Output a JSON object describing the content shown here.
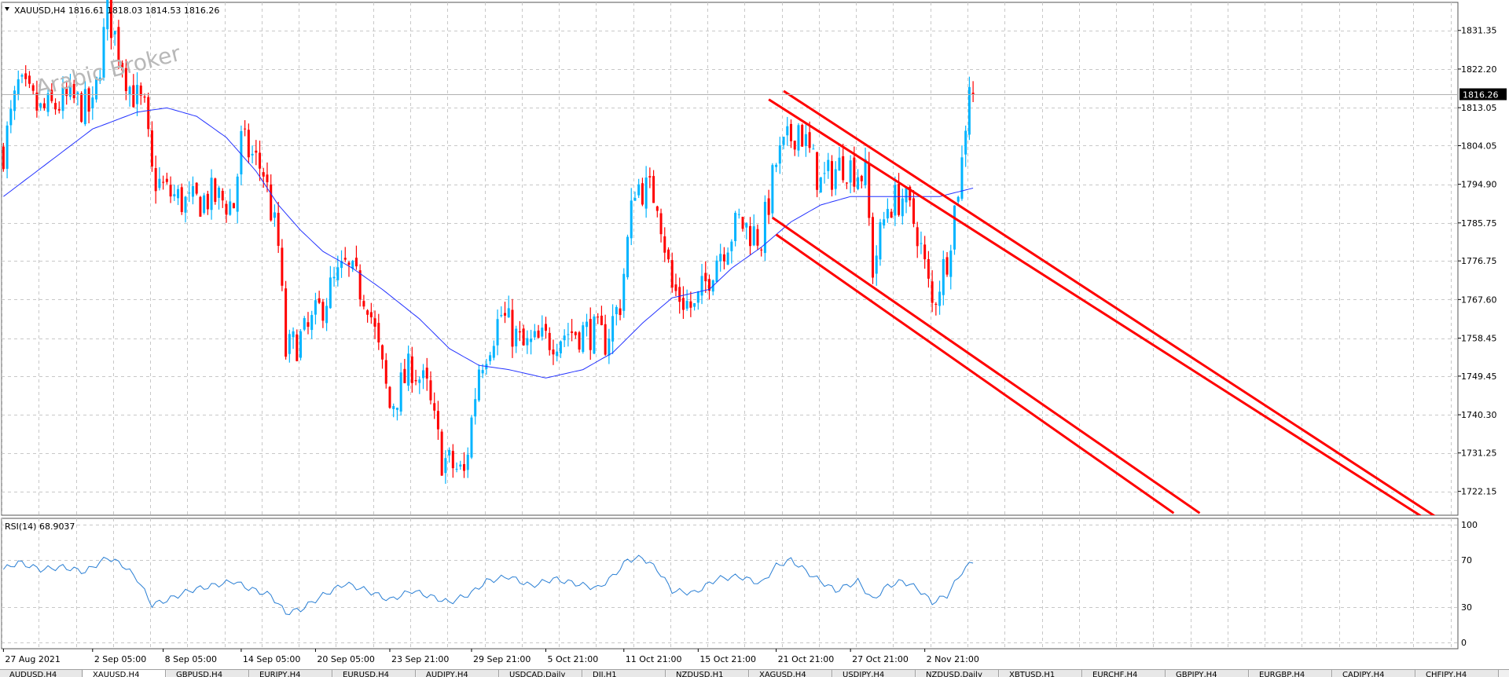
{
  "chart_data": {
    "type": "candlestick",
    "symbol_header": "XAUUSD,H4",
    "ohlc_header": "1816.61 1818.03 1814.53 1816.26",
    "current_price_label": "1816.26",
    "current_price": 1816.26,
    "watermark": "Arabic Broker",
    "price_axis": {
      "ylim": [
        1716.5,
        1838.0
      ],
      "ticks": [
        1722.15,
        1731.25,
        1740.3,
        1749.45,
        1758.45,
        1767.6,
        1776.75,
        1785.75,
        1794.9,
        1804.05,
        1813.05,
        1822.2,
        1831.35
      ],
      "tick_labels": [
        "1722.15",
        "1731.25",
        "1740.30",
        "1749.45",
        "1758.45",
        "1767.60",
        "1776.75",
        "1785.75",
        "1794.90",
        "1804.05",
        "1813.05",
        "1822.20",
        "1831.35"
      ]
    },
    "time_axis": {
      "labels": [
        "27 Aug 2021",
        "2 Sep 05:00",
        "8 Sep 05:00",
        "14 Sep 05:00",
        "20 Sep 05:00",
        "23 Sep 21:00",
        "29 Sep 21:00",
        "5 Oct 21:00",
        "11 Oct 21:00",
        "15 Oct 21:00",
        "21 Oct 21:00",
        "27 Oct 21:00",
        "2 Nov 21:00"
      ],
      "label_bar_index": [
        0,
        24,
        43,
        64,
        84,
        104,
        126,
        146,
        167,
        187,
        208,
        228,
        248
      ]
    },
    "candle_count": 262,
    "bars_total": 392,
    "close_path": [
      [
        0,
        1803
      ],
      [
        4,
        1818
      ],
      [
        10,
        1812
      ],
      [
        18,
        1815
      ],
      [
        24,
        1812
      ],
      [
        28,
        1836
      ],
      [
        34,
        1818
      ],
      [
        38,
        1812
      ],
      [
        40,
        1797
      ],
      [
        44,
        1793
      ],
      [
        50,
        1790
      ],
      [
        56,
        1792
      ],
      [
        62,
        1790
      ],
      [
        64,
        1805
      ],
      [
        70,
        1798
      ],
      [
        74,
        1780
      ],
      [
        76,
        1755
      ],
      [
        82,
        1760
      ],
      [
        88,
        1770
      ],
      [
        92,
        1775
      ],
      [
        98,
        1768
      ],
      [
        104,
        1742
      ],
      [
        110,
        1752
      ],
      [
        114,
        1746
      ],
      [
        118,
        1730
      ],
      [
        124,
        1726
      ],
      [
        128,
        1752
      ],
      [
        134,
        1764
      ],
      [
        140,
        1756
      ],
      [
        146,
        1758
      ],
      [
        152,
        1760
      ],
      [
        158,
        1760
      ],
      [
        162,
        1758
      ],
      [
        166,
        1767
      ],
      [
        170,
        1795
      ],
      [
        176,
        1792
      ],
      [
        180,
        1770
      ],
      [
        186,
        1765
      ],
      [
        192,
        1778
      ],
      [
        198,
        1786
      ],
      [
        204,
        1782
      ],
      [
        208,
        1800
      ],
      [
        214,
        1809
      ],
      [
        220,
        1795
      ],
      [
        226,
        1800
      ],
      [
        232,
        1797
      ],
      [
        234,
        1775
      ],
      [
        238,
        1790
      ],
      [
        242,
        1792
      ],
      [
        246,
        1784
      ],
      [
        250,
        1766
      ],
      [
        254,
        1778
      ],
      [
        258,
        1800
      ],
      [
        260,
        1820
      ],
      [
        261,
        1816
      ]
    ],
    "moving_average": {
      "style": "blue line",
      "points": [
        [
          0,
          1792
        ],
        [
          12,
          1800
        ],
        [
          24,
          1808
        ],
        [
          36,
          1812
        ],
        [
          44,
          1813
        ],
        [
          52,
          1811
        ],
        [
          60,
          1806
        ],
        [
          68,
          1798
        ],
        [
          74,
          1790
        ],
        [
          80,
          1784
        ],
        [
          86,
          1779
        ],
        [
          94,
          1775
        ],
        [
          102,
          1770
        ],
        [
          112,
          1763
        ],
        [
          120,
          1756
        ],
        [
          128,
          1752
        ],
        [
          136,
          1751
        ],
        [
          146,
          1749
        ],
        [
          156,
          1751
        ],
        [
          164,
          1755
        ],
        [
          172,
          1762
        ],
        [
          180,
          1768
        ],
        [
          190,
          1770
        ],
        [
          196,
          1775
        ],
        [
          204,
          1780
        ],
        [
          212,
          1786
        ],
        [
          220,
          1790
        ],
        [
          228,
          1792
        ],
        [
          236,
          1792
        ],
        [
          244,
          1792
        ],
        [
          252,
          1792
        ],
        [
          261,
          1794
        ]
      ]
    },
    "trend_lines": [
      [
        [
          206,
          1815
        ],
        [
          391,
          1711
        ]
      ],
      [
        [
          210,
          1817
        ],
        [
          391,
          1713
        ]
      ],
      [
        [
          207,
          1787
        ],
        [
          322,
          1717
        ]
      ],
      [
        [
          208,
          1783
        ],
        [
          315,
          1717
        ]
      ]
    ],
    "colors": {
      "up_candle": "#00b4ff",
      "down_candle": "#ff0000",
      "moving_average": "#2332ff",
      "trend_line": "#ff0000",
      "rsi_line": "#2a7fd4",
      "grid": "#c8c8c8"
    },
    "rsi": {
      "label": "RSI(14) 68.9037",
      "ylim": [
        0,
        100
      ],
      "ticks": [
        0,
        30,
        70,
        100
      ],
      "tick_labels": [
        "0",
        "30",
        "70",
        "100"
      ],
      "points": [
        [
          0,
          62
        ],
        [
          4,
          68
        ],
        [
          10,
          62
        ],
        [
          16,
          64
        ],
        [
          22,
          60
        ],
        [
          28,
          72
        ],
        [
          32,
          66
        ],
        [
          36,
          54
        ],
        [
          40,
          32
        ],
        [
          44,
          36
        ],
        [
          50,
          44
        ],
        [
          56,
          48
        ],
        [
          62,
          52
        ],
        [
          66,
          46
        ],
        [
          72,
          40
        ],
        [
          76,
          25
        ],
        [
          80,
          28
        ],
        [
          86,
          40
        ],
        [
          92,
          50
        ],
        [
          98,
          44
        ],
        [
          104,
          36
        ],
        [
          110,
          44
        ],
        [
          116,
          38
        ],
        [
          120,
          34
        ],
        [
          126,
          42
        ],
        [
          130,
          52
        ],
        [
          136,
          56
        ],
        [
          142,
          48
        ],
        [
          148,
          54
        ],
        [
          154,
          50
        ],
        [
          160,
          46
        ],
        [
          164,
          56
        ],
        [
          168,
          70
        ],
        [
          172,
          72
        ],
        [
          176,
          62
        ],
        [
          180,
          44
        ],
        [
          186,
          42
        ],
        [
          192,
          54
        ],
        [
          198,
          56
        ],
        [
          204,
          50
        ],
        [
          208,
          65
        ],
        [
          212,
          70
        ],
        [
          218,
          56
        ],
        [
          224,
          44
        ],
        [
          230,
          52
        ],
        [
          234,
          36
        ],
        [
          238,
          48
        ],
        [
          242,
          52
        ],
        [
          246,
          46
        ],
        [
          250,
          34
        ],
        [
          254,
          40
        ],
        [
          258,
          60
        ],
        [
          261,
          69
        ]
      ]
    }
  },
  "tabs": [
    "AUDUSD,H4",
    "XAUUSD,H4",
    "GBPUSD,H4",
    "EURJPY,H4",
    "EURUSD,H4",
    "AUDJPY,H4",
    "USDCAD,Daily",
    "DJI,H1",
    "NZDUSD,H1",
    "XAGUSD,H4",
    "USDJPY,H4",
    "NZDUSD,Daily",
    "XBTUSD,H1",
    "EURCHF,H4",
    "GBPJPY,H4",
    "EURGBP,H4",
    "CADJPY,H4",
    "CHFJPY,H4"
  ],
  "active_tab": 1
}
